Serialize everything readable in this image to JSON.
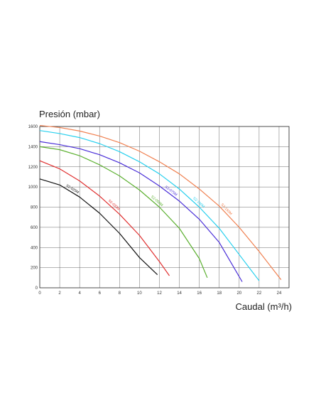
{
  "chart_data": {
    "type": "line",
    "ylabel": "Presión (mbar)",
    "xlabel": "Caudal (m³/h)",
    "xlim": [
      0,
      25
    ],
    "ylim": [
      0,
      1600
    ],
    "x_ticks": [
      "0",
      "2",
      "4",
      "6",
      "8",
      "10",
      "12",
      "14",
      "16",
      "18",
      "20",
      "22",
      "24"
    ],
    "y_ticks": [
      "0",
      "200",
      "400",
      "600",
      "800",
      "1000",
      "1200",
      "1400",
      "1600"
    ],
    "grid": true,
    "series": [
      {
        "name": "S2-025M",
        "color": "#111111",
        "x": [
          0,
          2,
          4,
          6,
          8,
          10,
          11.8
        ],
        "y": [
          1080,
          1020,
          900,
          740,
          540,
          300,
          130
        ]
      },
      {
        "name": "S2-033M",
        "color": "#e03030",
        "x": [
          0,
          2,
          4,
          6,
          8,
          10,
          12,
          13
        ],
        "y": [
          1260,
          1180,
          1060,
          910,
          730,
          520,
          260,
          120
        ]
      },
      {
        "name": "S2-050M",
        "color": "#5cb030",
        "x": [
          0,
          2,
          4,
          6,
          8,
          10,
          12,
          14,
          16,
          16.8
        ],
        "y": [
          1400,
          1370,
          1310,
          1220,
          1110,
          970,
          800,
          590,
          290,
          100
        ]
      },
      {
        "name": "S2-075M",
        "color": "#4a2fd8",
        "x": [
          0,
          2,
          4,
          6,
          8,
          10,
          12,
          14,
          16,
          18,
          20.3
        ],
        "y": [
          1450,
          1420,
          1380,
          1320,
          1240,
          1140,
          1010,
          860,
          680,
          450,
          60
        ]
      },
      {
        "name": "S2-100M",
        "color": "#28d0ee",
        "x": [
          0,
          2,
          4,
          6,
          8,
          10,
          12,
          14,
          16,
          18,
          20,
          22
        ],
        "y": [
          1560,
          1530,
          1490,
          1430,
          1350,
          1250,
          1130,
          980,
          800,
          590,
          330,
          70
        ]
      },
      {
        "name": "S2-150M",
        "color": "#f08050",
        "x": [
          0,
          2,
          4,
          6,
          8,
          10,
          12,
          14,
          16,
          18,
          20,
          22,
          24.2
        ],
        "y": [
          1610,
          1590,
          1555,
          1505,
          1440,
          1355,
          1250,
          1130,
          980,
          810,
          600,
          360,
          80
        ]
      }
    ]
  }
}
